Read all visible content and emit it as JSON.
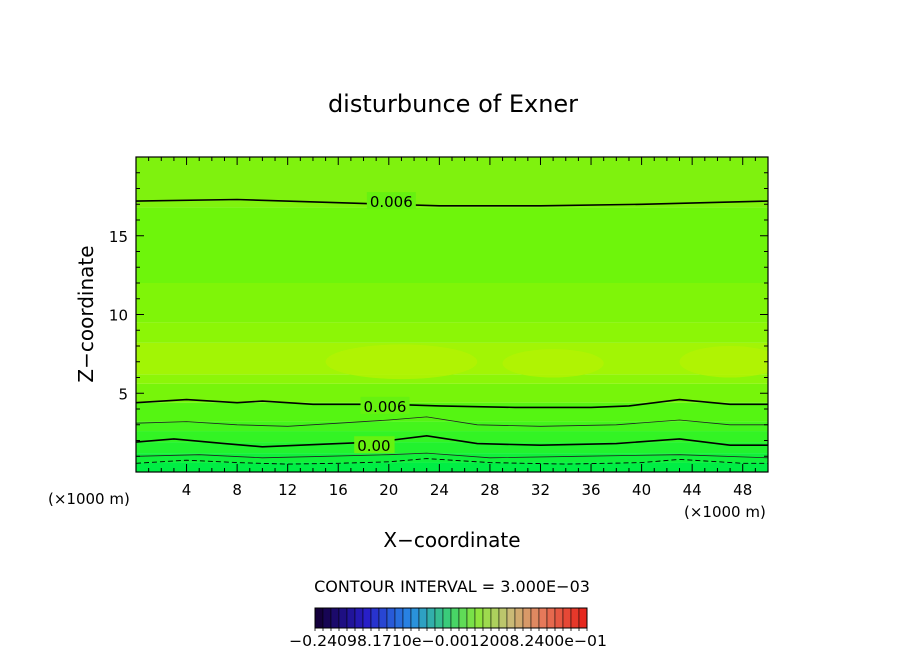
{
  "chart_data": {
    "type": "contour",
    "title": "disturbunce of Exner",
    "xlabel": "X−coordinate",
    "ylabel": "Z−coordinate",
    "x_unit_label": "(×1000 m)",
    "y_unit_label": "(×1000 m)",
    "xlim": [
      0,
      50
    ],
    "ylim": [
      0,
      20
    ],
    "x_ticks": [
      4,
      8,
      12,
      16,
      20,
      24,
      28,
      32,
      36,
      40,
      44,
      48
    ],
    "y_ticks": [
      5,
      10,
      15
    ],
    "contour_interval_text": "CONTOUR INTERVAL = 3.000E−03",
    "contour_labels": [
      {
        "text": "0.006",
        "x": 18.5,
        "z": 17.2
      },
      {
        "text": "0.006",
        "x": 18.0,
        "z": 4.2
      },
      {
        "text": "0.00",
        "x": 17.5,
        "z": 1.7
      }
    ],
    "contour_lines": [
      {
        "level": 0.006,
        "style": "solid-thick",
        "points": [
          [
            0,
            17.2
          ],
          [
            8,
            17.3
          ],
          [
            16,
            17.1
          ],
          [
            24,
            16.9
          ],
          [
            32,
            16.9
          ],
          [
            40,
            17.0
          ],
          [
            50,
            17.2
          ]
        ]
      },
      {
        "level": 0.006,
        "style": "solid-thick",
        "points": [
          [
            0,
            4.4
          ],
          [
            4,
            4.6
          ],
          [
            8,
            4.4
          ],
          [
            10,
            4.5
          ],
          [
            14,
            4.3
          ],
          [
            20,
            4.3
          ],
          [
            24,
            4.2
          ],
          [
            30,
            4.1
          ],
          [
            36,
            4.1
          ],
          [
            39,
            4.2
          ],
          [
            43,
            4.6
          ],
          [
            47,
            4.3
          ],
          [
            50,
            4.3
          ]
        ]
      },
      {
        "level": 0.003,
        "style": "solid-thin",
        "points": [
          [
            0,
            3.1
          ],
          [
            4,
            3.2
          ],
          [
            8,
            3.0
          ],
          [
            12,
            2.9
          ],
          [
            16,
            3.1
          ],
          [
            20,
            3.3
          ],
          [
            23,
            3.5
          ],
          [
            27,
            3.0
          ],
          [
            32,
            2.9
          ],
          [
            38,
            3.0
          ],
          [
            43,
            3.3
          ],
          [
            47,
            3.0
          ],
          [
            50,
            3.0
          ]
        ]
      },
      {
        "level": 0.0,
        "style": "solid-thick",
        "points": [
          [
            0,
            1.9
          ],
          [
            3,
            2.1
          ],
          [
            7,
            1.8
          ],
          [
            10,
            1.6
          ],
          [
            13,
            1.7
          ],
          [
            16,
            1.8
          ],
          [
            19,
            1.9
          ],
          [
            23,
            2.3
          ],
          [
            27,
            1.8
          ],
          [
            32,
            1.7
          ],
          [
            38,
            1.8
          ],
          [
            43,
            2.1
          ],
          [
            47,
            1.7
          ],
          [
            50,
            1.7
          ]
        ]
      },
      {
        "level": -0.003,
        "style": "solid-thin",
        "points": [
          [
            0,
            1.0
          ],
          [
            5,
            1.1
          ],
          [
            10,
            0.9
          ],
          [
            15,
            1.0
          ],
          [
            20,
            1.1
          ],
          [
            23,
            1.2
          ],
          [
            28,
            0.9
          ],
          [
            35,
            1.0
          ],
          [
            43,
            1.1
          ],
          [
            50,
            0.9
          ]
        ]
      },
      {
        "level": -0.003,
        "style": "dashed",
        "points": [
          [
            0,
            0.55
          ],
          [
            4,
            0.75
          ],
          [
            8,
            0.6
          ],
          [
            12,
            0.5
          ],
          [
            16,
            0.55
          ],
          [
            20,
            0.65
          ],
          [
            23,
            0.85
          ],
          [
            28,
            0.6
          ],
          [
            34,
            0.5
          ],
          [
            40,
            0.6
          ],
          [
            43,
            0.8
          ],
          [
            48,
            0.55
          ],
          [
            50,
            0.55
          ]
        ]
      }
    ],
    "colorbar": {
      "n_colors": 34,
      "tick_labels_text": "−0.24098.1710e−0.0012008.2400e−01"
    }
  }
}
